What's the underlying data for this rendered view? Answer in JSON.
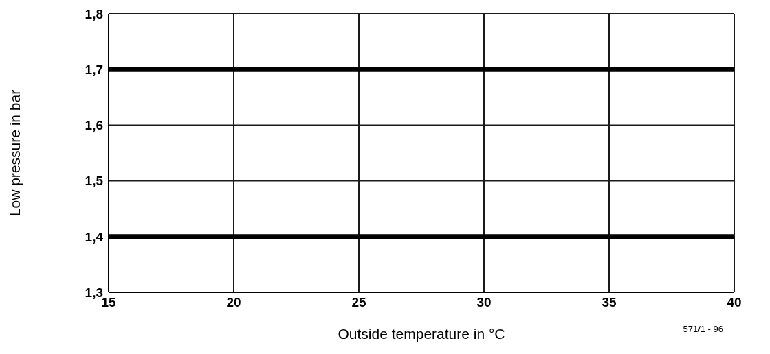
{
  "chart_data": {
    "type": "line",
    "xlabel": "Outside temperature in °C",
    "ylabel": "Low pressure in bar",
    "xlim": [
      15,
      40
    ],
    "xticks": [
      15,
      20,
      25,
      30,
      35,
      40
    ],
    "ylim": [
      1.3,
      1.8
    ],
    "yticks": [
      {
        "value": 1.3,
        "label": "1,3"
      },
      {
        "value": 1.4,
        "label": "1,4"
      },
      {
        "value": 1.5,
        "label": "1,5"
      },
      {
        "value": 1.6,
        "label": "1,6"
      },
      {
        "value": 1.7,
        "label": "1,7"
      },
      {
        "value": 1.8,
        "label": "1,8"
      }
    ],
    "x": [
      15,
      40
    ],
    "series": [
      {
        "color": "#000000",
        "values": [
          1.7,
          1.7
        ]
      },
      {
        "color": "#000000",
        "values": [
          1.4,
          1.4
        ]
      }
    ],
    "grid": true,
    "marker": "none",
    "line_style": "solid",
    "annotations": [
      "571/1 - 96"
    ]
  }
}
